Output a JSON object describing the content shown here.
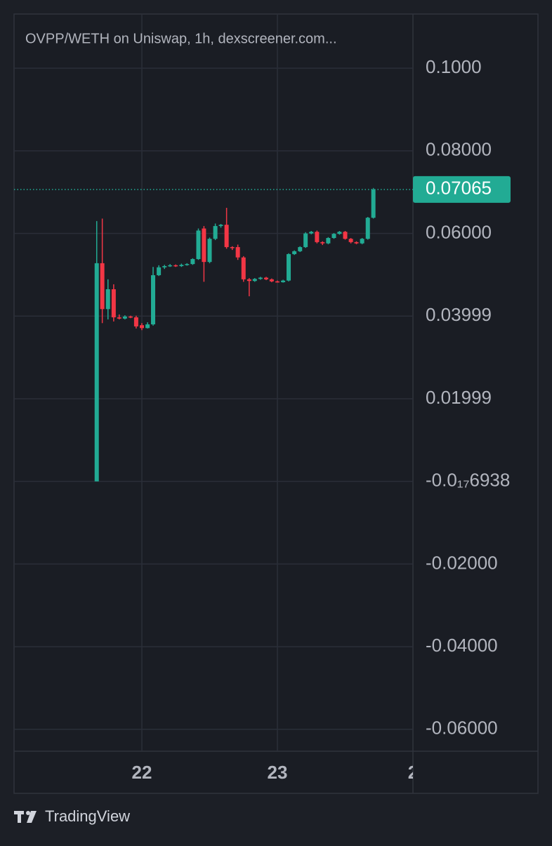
{
  "chart_data": {
    "type": "candlestick",
    "title": "OVPP/WETH on Uniswap, 1h, dexscreener.com...",
    "brand": "TradingView",
    "up_color": "#22ab94",
    "down_color": "#f23645",
    "grid": true,
    "xlim": [
      21.057,
      24
    ],
    "xticks": [
      22,
      23,
      {
        "value": 24,
        "label": "2"
      }
    ],
    "ylim": [
      -0.0653,
      0.1131
    ],
    "yticks": [
      {
        "value": 0.1,
        "label": "0.1000"
      },
      {
        "value": 0.08,
        "label": "0.08000"
      },
      {
        "value": 0.06,
        "label": "0.06000"
      },
      0.03999,
      0.01999,
      {
        "value": -6.938e-18,
        "label": "-0.0₁₇6938"
      },
      {
        "value": -0.02,
        "label": "-0.02000"
      },
      {
        "value": -0.04,
        "label": "-0.04000"
      },
      {
        "value": -0.06,
        "label": "-0.06000"
      }
    ],
    "x": [
      21.667,
      21.708,
      21.75,
      21.792,
      21.833,
      21.875,
      21.917,
      21.958,
      22,
      22.042,
      22.083,
      22.125,
      22.167,
      22.208,
      22.25,
      22.292,
      22.333,
      22.375,
      22.417,
      22.458,
      22.5,
      22.542,
      22.583,
      22.625,
      22.667,
      22.708,
      22.75,
      22.792,
      22.833,
      22.875,
      22.917,
      22.958,
      23,
      23.042,
      23.083,
      23.125,
      23.167,
      23.208,
      23.25,
      23.292,
      23.333,
      23.375,
      23.417,
      23.458,
      23.5,
      23.542,
      23.583,
      23.625,
      23.667,
      23.708
    ],
    "open": [
      0,
      0.0528,
      0.0417,
      0.0465,
      0.0397,
      0.0394,
      0.0399,
      0.0397,
      0.0378,
      0.0371,
      0.038,
      0.0499,
      0.0518,
      0.0521,
      0.0523,
      0.0521,
      0.0524,
      0.0526,
      0.0538,
      0.0612,
      0.0531,
      0.0587,
      0.0618,
      0.0621,
      0.0567,
      0.0567,
      0.0542,
      0.0489,
      0.0485,
      0.049,
      0.0493,
      0.0489,
      0.0484,
      0.0482,
      0.0486,
      0.055,
      0.0557,
      0.0567,
      0.06,
      0.0604,
      0.0579,
      0.0576,
      0.0589,
      0.0599,
      0.0604,
      0.0587,
      0.0579,
      0.0576,
      0.0587,
      0.0638
    ],
    "high": [
      0.063,
      0.0636,
      0.0489,
      0.0477,
      0.0404,
      0.0402,
      0.0401,
      0.0401,
      0.0383,
      0.0385,
      0.0519,
      0.0523,
      0.0524,
      0.0526,
      0.0525,
      0.0527,
      0.0528,
      0.054,
      0.0612,
      0.0618,
      0.059,
      0.0624,
      0.0623,
      0.0662,
      0.0569,
      0.0573,
      0.0545,
      0.0492,
      0.0492,
      0.0495,
      0.0495,
      0.0491,
      0.0486,
      0.0488,
      0.0552,
      0.0559,
      0.0569,
      0.0603,
      0.0606,
      0.0607,
      0.0581,
      0.0591,
      0.0601,
      0.0606,
      0.0606,
      0.0589,
      0.0581,
      0.0589,
      0.064,
      0.071
    ],
    "low": [
      0,
      0.0383,
      0.0392,
      0.0387,
      0.0392,
      0.0392,
      0.0395,
      0.037,
      0.0366,
      0.037,
      0.0377,
      0.0497,
      0.0514,
      0.0519,
      0.0519,
      0.0519,
      0.0522,
      0.0524,
      0.0536,
      0.0483,
      0.0528,
      0.0584,
      0.0614,
      0.0563,
      0.056,
      0.0536,
      0.0483,
      0.0448,
      0.0483,
      0.0488,
      0.0487,
      0.0482,
      0.0481,
      0.0481,
      0.0484,
      0.0548,
      0.0555,
      0.0565,
      0.0598,
      0.0576,
      0.0572,
      0.0574,
      0.0587,
      0.0597,
      0.0585,
      0.0576,
      0.0574,
      0.0574,
      0.0585,
      0.0636
    ],
    "close": [
      0.0528,
      0.0417,
      0.0465,
      0.0397,
      0.0394,
      0.0399,
      0.0397,
      0.0375,
      0.0371,
      0.038,
      0.0499,
      0.0518,
      0.0521,
      0.0523,
      0.0521,
      0.0524,
      0.0526,
      0.0538,
      0.0607,
      0.0531,
      0.0587,
      0.0618,
      0.0621,
      0.0567,
      0.0565,
      0.0542,
      0.0489,
      0.0485,
      0.049,
      0.0493,
      0.0489,
      0.0484,
      0.0482,
      0.0486,
      0.055,
      0.0557,
      0.0567,
      0.06,
      0.0604,
      0.0579,
      0.0576,
      0.0589,
      0.0599,
      0.0604,
      0.0587,
      0.0579,
      0.0576,
      0.0587,
      0.0638,
      0.07065
    ]
  }
}
